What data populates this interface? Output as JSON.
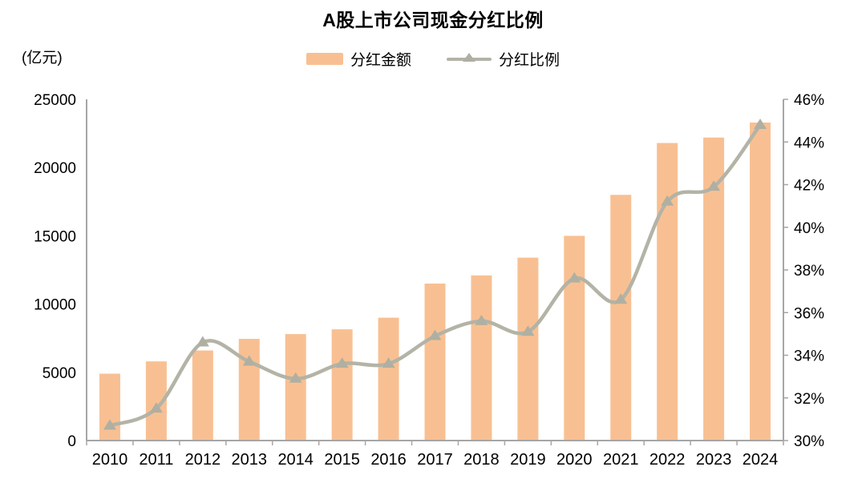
{
  "title": "A股上市公司现金分红比例",
  "legend": {
    "bar_label": "分红金额",
    "line_label": "分红比例"
  },
  "left_axis": {
    "unit_label": "(亿元)",
    "tick_labels": [
      "0",
      "5000",
      "10000",
      "15000",
      "20000",
      "25000"
    ]
  },
  "right_axis": {
    "tick_labels": [
      "30%",
      "32%",
      "34%",
      "36%",
      "38%",
      "40%",
      "42%",
      "44%",
      "46%"
    ]
  },
  "colors": {
    "bar": "#F8C092",
    "line": "#B3B3A6",
    "marker": "#AFAFA2",
    "axis": "#A6A6A6",
    "text": "#000000"
  },
  "chart_data": {
    "type": "bar+line",
    "title": "A股上市公司现金分红比例",
    "categories": [
      "2010",
      "2011",
      "2012",
      "2013",
      "2014",
      "2015",
      "2016",
      "2017",
      "2018",
      "2019",
      "2020",
      "2021",
      "2022",
      "2023",
      "2024"
    ],
    "series": [
      {
        "name": "分红金额",
        "type": "bar",
        "axis": "left",
        "unit": "亿元",
        "values": [
          4900,
          5800,
          6600,
          7450,
          7800,
          8150,
          9000,
          11500,
          12100,
          13400,
          15000,
          18000,
          21800,
          22200,
          23300
        ]
      },
      {
        "name": "分红比例",
        "type": "line",
        "axis": "right",
        "unit": "%",
        "values": [
          30.7,
          31.5,
          34.6,
          33.7,
          32.9,
          33.6,
          33.6,
          34.9,
          35.6,
          35.1,
          37.6,
          36.6,
          41.2,
          41.9,
          44.8
        ]
      }
    ],
    "left_ylabel": "(亿元)",
    "left_ylim": [
      0,
      25000
    ],
    "left_tick_step": 5000,
    "right_ylim": [
      30,
      46
    ],
    "right_tick_step": 2,
    "grid": false,
    "legend_position": "top-center"
  }
}
